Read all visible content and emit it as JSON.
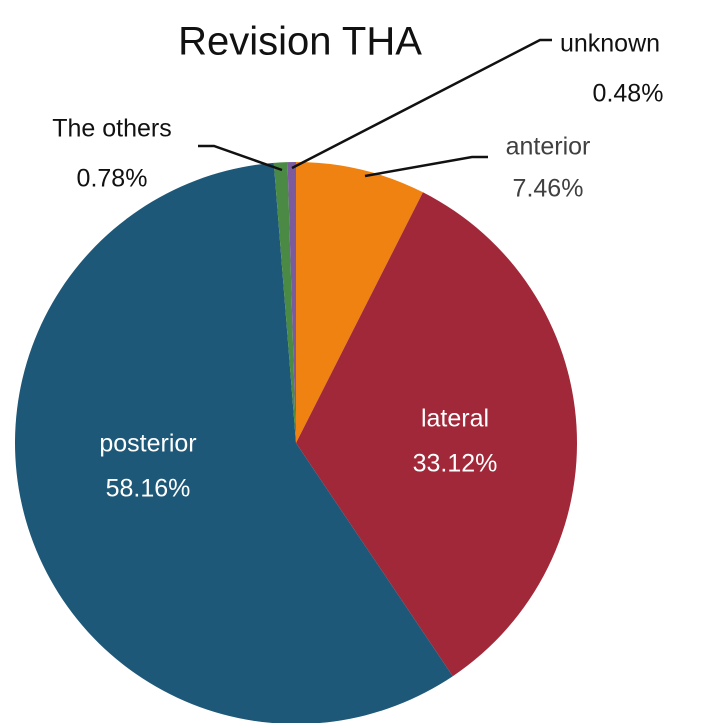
{
  "chart_data": {
    "type": "pie",
    "title": "Revision THA",
    "categories": [
      "anterior",
      "lateral",
      "posterior",
      "The others",
      "unknown"
    ],
    "values": [
      7.46,
      33.12,
      58.16,
      0.78,
      0.48
    ],
    "value_labels": [
      "7.46%",
      "33.12%",
      "58.16%",
      "0.78%",
      "0.48%"
    ],
    "colors": [
      "#ef8211",
      "#a12839",
      "#1e5878",
      "#4b8a45",
      "#7c5b9c"
    ]
  }
}
